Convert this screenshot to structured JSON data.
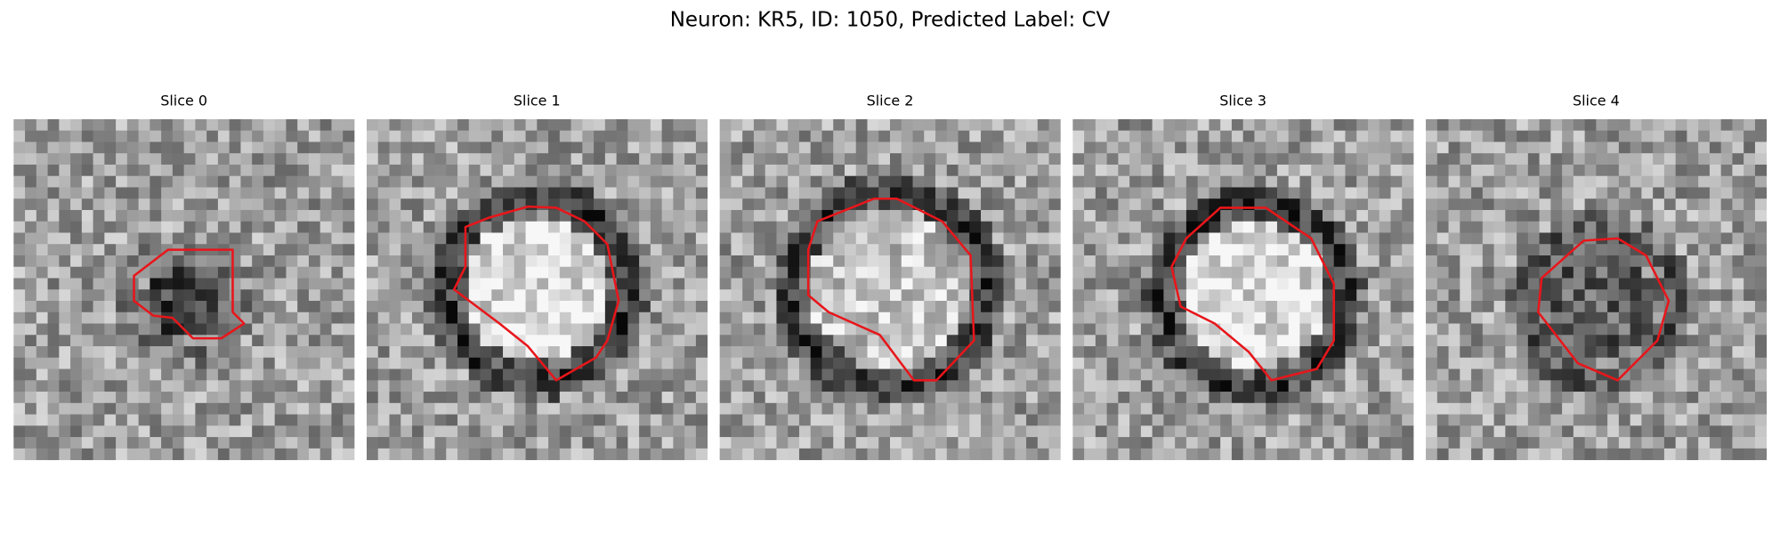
{
  "title": "Neuron: KR5, ID: 1050, Predicted Label: CV",
  "panels": [
    {
      "title": "Slice 0"
    },
    {
      "title": "Slice 1"
    },
    {
      "title": "Slice 2"
    },
    {
      "title": "Slice 3"
    },
    {
      "title": "Slice 4"
    }
  ]
}
